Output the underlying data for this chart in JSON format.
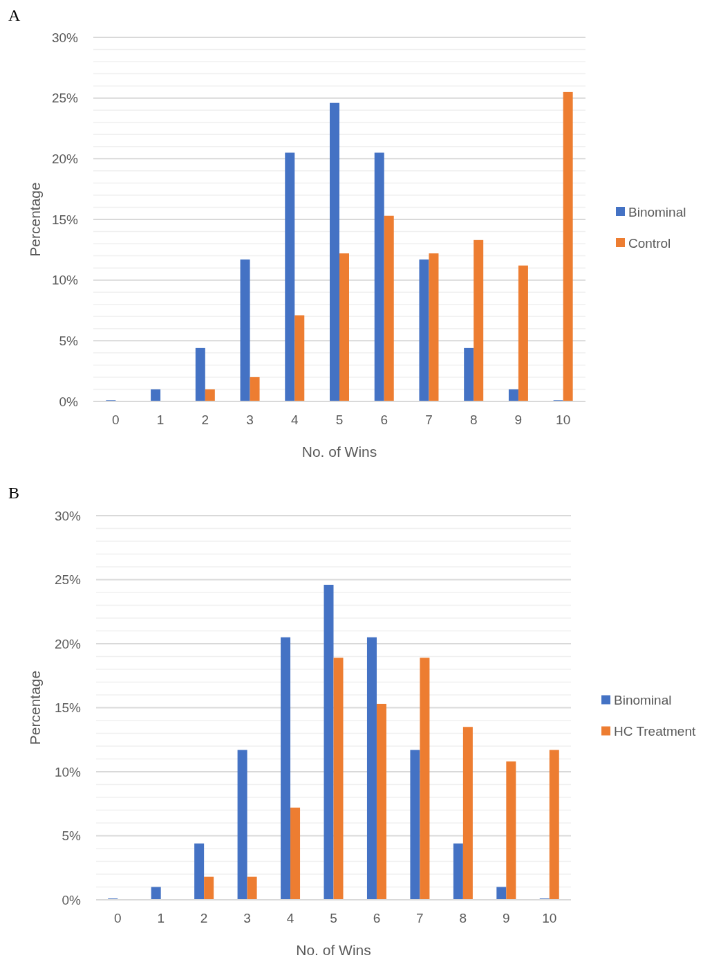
{
  "chart_data": [
    {
      "type": "bar",
      "annotations": [
        "A"
      ],
      "xlabel": "No. of Wins",
      "ylabel": "Percentage",
      "categories": [
        "0",
        "1",
        "2",
        "3",
        "4",
        "5",
        "6",
        "7",
        "8",
        "9",
        "10"
      ],
      "series": [
        {
          "name": "Binominal",
          "color": "#4472c4",
          "values": [
            0.1,
            1.0,
            4.4,
            11.7,
            20.5,
            24.6,
            20.5,
            11.7,
            4.4,
            1.0,
            0.1
          ]
        },
        {
          "name": "Control",
          "color": "#ed7d31",
          "values": [
            0,
            0,
            1.0,
            2.0,
            7.1,
            12.2,
            15.3,
            12.2,
            13.3,
            11.2,
            25.5
          ]
        }
      ],
      "ylim": [
        0,
        30
      ],
      "yticks": [
        {
          "value": 0,
          "label": "0%"
        },
        {
          "value": 1,
          "label": null
        },
        {
          "value": 2,
          "label": null
        },
        {
          "value": 3,
          "label": null
        },
        {
          "value": 4,
          "label": null
        },
        {
          "value": 5,
          "label": "5%"
        },
        {
          "value": 6,
          "label": null
        },
        {
          "value": 7,
          "label": null
        },
        {
          "value": 8,
          "label": null
        },
        {
          "value": 9,
          "label": null
        },
        {
          "value": 10,
          "label": "10%"
        },
        {
          "value": 11,
          "label": null
        },
        {
          "value": 12,
          "label": null
        },
        {
          "value": 13,
          "label": null
        },
        {
          "value": 14,
          "label": null
        },
        {
          "value": 15,
          "label": "15%"
        },
        {
          "value": 16,
          "label": null
        },
        {
          "value": 17,
          "label": null
        },
        {
          "value": 18,
          "label": null
        },
        {
          "value": 19,
          "label": null
        },
        {
          "value": 20,
          "label": "20%"
        },
        {
          "value": 21,
          "label": null
        },
        {
          "value": 22,
          "label": null
        },
        {
          "value": 23,
          "label": null
        },
        {
          "value": 24,
          "label": null
        },
        {
          "value": 25,
          "label": "25%"
        },
        {
          "value": 26,
          "label": null
        },
        {
          "value": 27,
          "label": null
        },
        {
          "value": 28,
          "label": null
        },
        {
          "value": 29,
          "label": null
        },
        {
          "value": 30,
          "label": "30%"
        }
      ],
      "grid": "y",
      "legend": "right"
    },
    {
      "type": "bar",
      "annotations": [
        "B"
      ],
      "xlabel": "No. of Wins",
      "ylabel": "Percentage",
      "categories": [
        "0",
        "1",
        "2",
        "3",
        "4",
        "5",
        "6",
        "7",
        "8",
        "9",
        "10"
      ],
      "series": [
        {
          "name": "Binominal",
          "color": "#4472c4",
          "values": [
            0.1,
            1.0,
            4.4,
            11.7,
            20.5,
            24.6,
            20.5,
            11.7,
            4.4,
            1.0,
            0.1
          ]
        },
        {
          "name": "HC Treatment",
          "color": "#ed7d31",
          "values": [
            0,
            0,
            1.8,
            1.8,
            7.2,
            18.9,
            15.3,
            18.9,
            13.5,
            10.8,
            11.7
          ]
        }
      ],
      "ylim": [
        0,
        30
      ],
      "yticks": [
        {
          "value": 0,
          "label": "0%"
        },
        {
          "value": 1,
          "label": null
        },
        {
          "value": 2,
          "label": null
        },
        {
          "value": 3,
          "label": null
        },
        {
          "value": 4,
          "label": null
        },
        {
          "value": 5,
          "label": "5%"
        },
        {
          "value": 6,
          "label": null
        },
        {
          "value": 7,
          "label": null
        },
        {
          "value": 8,
          "label": null
        },
        {
          "value": 9,
          "label": null
        },
        {
          "value": 10,
          "label": "10%"
        },
        {
          "value": 11,
          "label": null
        },
        {
          "value": 12,
          "label": null
        },
        {
          "value": 13,
          "label": null
        },
        {
          "value": 14,
          "label": null
        },
        {
          "value": 15,
          "label": "15%"
        },
        {
          "value": 16,
          "label": null
        },
        {
          "value": 17,
          "label": null
        },
        {
          "value": 18,
          "label": null
        },
        {
          "value": 19,
          "label": null
        },
        {
          "value": 20,
          "label": "20%"
        },
        {
          "value": 21,
          "label": null
        },
        {
          "value": 22,
          "label": null
        },
        {
          "value": 23,
          "label": null
        },
        {
          "value": 24,
          "label": null
        },
        {
          "value": 25,
          "label": "25%"
        },
        {
          "value": 26,
          "label": null
        },
        {
          "value": 27,
          "label": null
        },
        {
          "value": 28,
          "label": null
        },
        {
          "value": 29,
          "label": null
        },
        {
          "value": 30,
          "label": "30%"
        }
      ],
      "grid": "y",
      "legend": "right"
    }
  ]
}
